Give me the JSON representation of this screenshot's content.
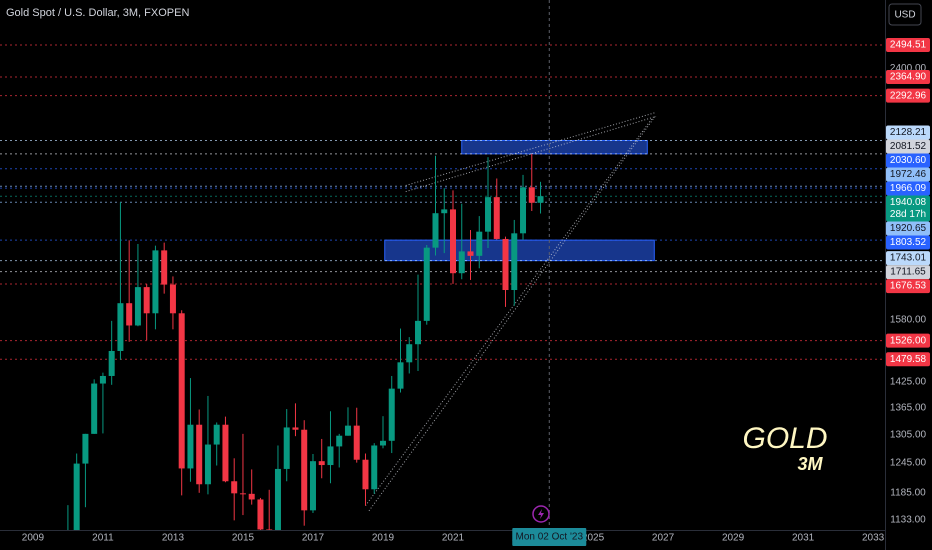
{
  "chart_data": {
    "type": "candlestick",
    "title": "Gold Spot / U.S. Dollar, 3M, FXOPEN",
    "currency": "USD",
    "watermark": {
      "symbol": "GOLD",
      "interval": "3M"
    },
    "x": [
      2010,
      2010.25,
      2010.5,
      2010.75,
      2011,
      2011.25,
      2011.5,
      2011.75,
      2012,
      2012.25,
      2012.5,
      2012.75,
      2013,
      2013.25,
      2013.5,
      2013.75,
      2014,
      2014.25,
      2014.5,
      2014.75,
      2015,
      2015.25,
      2015.5,
      2015.75,
      2016,
      2016.25,
      2016.5,
      2016.75,
      2017,
      2017.25,
      2017.5,
      2017.75,
      2018,
      2018.25,
      2018.5,
      2018.75,
      2019,
      2019.25,
      2019.5,
      2019.75,
      2020,
      2020.25,
      2020.5,
      2020.75,
      2021,
      2021.25,
      2021.5,
      2021.75,
      2022,
      2022.25,
      2022.5,
      2022.75,
      2023,
      2023.25,
      2023.5
    ],
    "open": [
      1097,
      1113,
      1244,
      1307,
      1421,
      1439,
      1500,
      1624,
      1565,
      1668,
      1597,
      1773,
      1675,
      1597,
      1234,
      1327,
      1202,
      1284,
      1327,
      1208,
      1184,
      1183,
      1172,
      1115,
      1061,
      1233,
      1321,
      1316,
      1151,
      1249,
      1241,
      1280,
      1303,
      1325,
      1252,
      1192,
      1282,
      1292,
      1409,
      1472,
      1517,
      1577,
      1781,
      1886,
      1898,
      1707,
      1770,
      1757,
      1829,
      1937,
      1807,
      1660,
      1824,
      1969,
      1919
    ],
    "high": [
      1161,
      1265,
      1307,
      1431,
      1447,
      1577,
      1921,
      1803,
      1792,
      1677,
      1787,
      1796,
      1698,
      1605,
      1434,
      1361,
      1392,
      1332,
      1345,
      1255,
      1307,
      1232,
      1175,
      1191,
      1282,
      1362,
      1375,
      1337,
      1264,
      1296,
      1357,
      1307,
      1366,
      1365,
      1265,
      1287,
      1346,
      1439,
      1557,
      1535,
      1703,
      1789,
      2075,
      1966,
      1959,
      1916,
      1834,
      1877,
      2070,
      1998,
      1814,
      1865,
      2010,
      2081,
      1987
    ],
    "low": [
      1045,
      1106,
      1157,
      1307,
      1308,
      1418,
      1478,
      1523,
      1563,
      1527,
      1555,
      1650,
      1555,
      1180,
      1207,
      1185,
      1182,
      1240,
      1206,
      1132,
      1142,
      1162,
      1077,
      1046,
      1061,
      1208,
      1302,
      1122,
      1146,
      1214,
      1204,
      1236,
      1303,
      1246,
      1160,
      1183,
      1276,
      1266,
      1400,
      1445,
      1451,
      1567,
      1758,
      1765,
      1677,
      1690,
      1688,
      1721,
      1780,
      1805,
      1614,
      1617,
      1804,
      1893,
      1885
    ],
    "close": [
      1113,
      1244,
      1307,
      1421,
      1439,
      1500,
      1624,
      1565,
      1668,
      1597,
      1773,
      1675,
      1597,
      1234,
      1327,
      1202,
      1284,
      1327,
      1208,
      1184,
      1183,
      1172,
      1115,
      1061,
      1233,
      1321,
      1316,
      1151,
      1249,
      1241,
      1280,
      1303,
      1325,
      1252,
      1192,
      1282,
      1292,
      1409,
      1472,
      1517,
      1577,
      1781,
      1886,
      1898,
      1707,
      1770,
      1757,
      1829,
      1937,
      1807,
      1660,
      1824,
      1969,
      1919,
      1940.08
    ],
    "up_color": "#089981",
    "down_color": "#f23645",
    "xlim": [
      2008.06,
      2033.34
    ],
    "xticks": [
      2009,
      2011,
      2013,
      2015,
      2017,
      2019,
      2021,
      2023,
      2025,
      2027,
      2029,
      2031,
      2033
    ],
    "ylim": [
      1114,
      2688
    ],
    "log_y": true,
    "grid": false,
    "yticks": [
      {
        "value": 2400,
        "label": "2400.00"
      },
      {
        "value": 1580,
        "label": "1580.00"
      },
      {
        "value": 1425,
        "label": "1425.00"
      },
      {
        "value": 1365,
        "label": "1365.00"
      },
      {
        "value": 1305,
        "label": "1305.00"
      },
      {
        "value": 1245,
        "label": "1245.00"
      },
      {
        "value": 1185,
        "label": "1185.00"
      },
      {
        "value": 1133,
        "label": "1133.00"
      }
    ],
    "levels": [
      {
        "value": 2494.51,
        "label": "2494.51",
        "color": "#f23645"
      },
      {
        "value": 2364.9,
        "label": "2364.90",
        "color": "#f23645"
      },
      {
        "value": 2292.96,
        "label": "2292.96",
        "color": "#f23645"
      },
      {
        "value": 2128.21,
        "label": "2128.21",
        "color": "#bbd9fb"
      },
      {
        "value": 2081.52,
        "label": "2081.52",
        "color": "#d1d4dc"
      },
      {
        "value": 2030.6,
        "label": "2030.60",
        "color": "#2962ff"
      },
      {
        "value": 1972.46,
        "label": "1972.46",
        "color": "#90bff9"
      },
      {
        "value": 1966.09,
        "label": "1966.09",
        "color": "#2962ff"
      },
      {
        "value": 1940.08,
        "label": "1940.08",
        "color": "#089981",
        "countdown": "28d 17h"
      },
      {
        "value": 1920.65,
        "label": "1920.65",
        "color": "#90bff9"
      },
      {
        "value": 1803.52,
        "label": "1803.52",
        "color": "#2962ff"
      },
      {
        "value": 1743.01,
        "label": "1743.01",
        "color": "#bbd9fb"
      },
      {
        "value": 1711.65,
        "label": "1711.65",
        "color": "#d1d4dc"
      },
      {
        "value": 1676.53,
        "label": "1676.53",
        "color": "#f23645"
      },
      {
        "value": 1526,
        "label": "1526.00",
        "color": "#f23645"
      },
      {
        "value": 1479.58,
        "label": "1479.58",
        "color": "#f23645"
      }
    ],
    "zones": [
      {
        "x": [
          2021.25,
          2026.55
        ],
        "y": [
          2081.52,
          2128.21
        ],
        "color": "#2962ff"
      },
      {
        "x": [
          2019.05,
          2026.75
        ],
        "y": [
          1743.01,
          1803.52
        ],
        "color": "#2962ff"
      }
    ],
    "trendlines": [
      {
        "x": [
          2019.65,
          2026.8
        ],
        "y": [
          1975,
          2230
        ]
      },
      {
        "x": [
          2019.65,
          2026.8
        ],
        "y": [
          1955,
          2215
        ]
      },
      {
        "x": [
          2018.5,
          2026.7
        ],
        "y": [
          1160,
          2210
        ]
      },
      {
        "x": [
          2018.6,
          2026.8
        ],
        "y": [
          1150,
          2220
        ]
      }
    ],
    "crosshair": {
      "x": 2023.75,
      "label": "Mon 02 Oct '23"
    }
  }
}
